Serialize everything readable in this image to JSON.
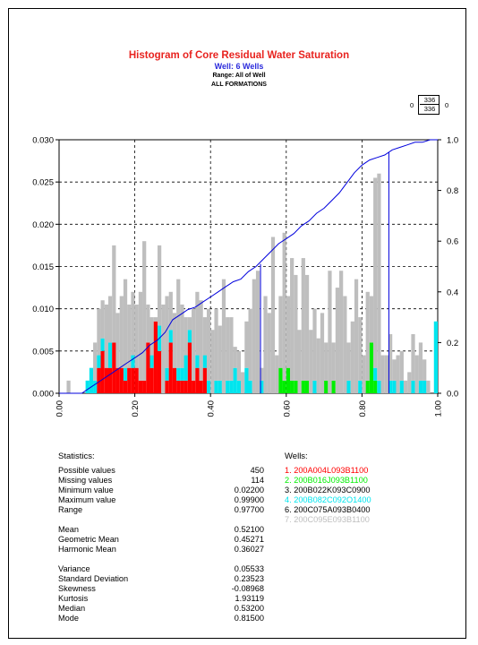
{
  "header": {
    "title": "Histogram of Core Residual Water Saturation",
    "subtitle": "Well: 6 Wells",
    "range": "Range: All of Well",
    "formations": "ALL FORMATIONS",
    "count_numerator": "336",
    "count_denominator": "336",
    "left_zero": "0",
    "right_zero": "0"
  },
  "colors": {
    "red": "#ff0000",
    "green": "#00ee00",
    "black": "#000000",
    "cyan": "#00e5ee",
    "gray": "#bebebe",
    "cumulative_line": "#0000dd",
    "title_red": "#e8231f",
    "subtitle_blue": "#2b2bdc"
  },
  "chart_data": {
    "type": "bar",
    "subtype": "stacked histogram with cumulative frequency curve",
    "xlim": [
      0.0,
      1.0
    ],
    "ylim": [
      0.0,
      0.03
    ],
    "y2lim": [
      0.0,
      1.0
    ],
    "x_ticks": [
      "0.00",
      "0.20",
      "0.40",
      "0.60",
      "0.80",
      "1.00"
    ],
    "y_ticks": [
      "0.000",
      "0.005",
      "0.010",
      "0.015",
      "0.020",
      "0.025",
      "0.030"
    ],
    "y2_ticks": [
      "0.0",
      "0.2",
      "0.4",
      "0.6",
      "0.8",
      "1.0"
    ],
    "grid": "dashed at major ticks",
    "bin_width": 0.01,
    "bin_starts": [
      0.02,
      0.03,
      0.04,
      0.05,
      0.06,
      0.07,
      0.08,
      0.09,
      0.1,
      0.11,
      0.12,
      0.13,
      0.14,
      0.15,
      0.16,
      0.17,
      0.18,
      0.19,
      0.2,
      0.21,
      0.22,
      0.23,
      0.24,
      0.25,
      0.26,
      0.27,
      0.28,
      0.29,
      0.3,
      0.31,
      0.32,
      0.33,
      0.34,
      0.35,
      0.36,
      0.37,
      0.38,
      0.39,
      0.4,
      0.41,
      0.42,
      0.43,
      0.44,
      0.45,
      0.46,
      0.47,
      0.48,
      0.49,
      0.5,
      0.51,
      0.52,
      0.53,
      0.54,
      0.55,
      0.56,
      0.57,
      0.58,
      0.59,
      0.6,
      0.61,
      0.62,
      0.63,
      0.64,
      0.65,
      0.66,
      0.67,
      0.68,
      0.69,
      0.7,
      0.71,
      0.72,
      0.73,
      0.74,
      0.75,
      0.76,
      0.77,
      0.78,
      0.79,
      0.8,
      0.81,
      0.82,
      0.83,
      0.84,
      0.85,
      0.86,
      0.87,
      0.88,
      0.89,
      0.9,
      0.91,
      0.92,
      0.93,
      0.94,
      0.95,
      0.96,
      0.97,
      0.98,
      0.99
    ],
    "series": [
      {
        "name": "1. 200A004L093B1100",
        "color": "#ff0000",
        "values": [
          0,
          0,
          0,
          0,
          0,
          0,
          0,
          0,
          0.003,
          0.005,
          0.003,
          0.003,
          0.006,
          0.003,
          0.003,
          0.0015,
          0.003,
          0.003,
          0.003,
          0.0015,
          0.0015,
          0.006,
          0.003,
          0.0085,
          0.005,
          0,
          0.0015,
          0.006,
          0.003,
          0.0015,
          0.0015,
          0.0015,
          0.006,
          0.0015,
          0.003,
          0.0015,
          0.003,
          0,
          0,
          0,
          0,
          0,
          0,
          0,
          0,
          0,
          0,
          0,
          0,
          0,
          0,
          0,
          0,
          0,
          0,
          0,
          0,
          0,
          0,
          0,
          0,
          0,
          0,
          0,
          0,
          0,
          0,
          0,
          0,
          0,
          0,
          0,
          0,
          0,
          0,
          0,
          0,
          0,
          0,
          0,
          0,
          0,
          0,
          0,
          0,
          0,
          0,
          0,
          0,
          0,
          0,
          0,
          0,
          0,
          0,
          0,
          0,
          0
        ]
      },
      {
        "name": "2. 200B016J093B1100",
        "color": "#00ee00",
        "values": [
          0,
          0,
          0,
          0,
          0,
          0,
          0,
          0,
          0,
          0,
          0,
          0,
          0,
          0,
          0,
          0,
          0,
          0,
          0,
          0,
          0,
          0,
          0,
          0,
          0,
          0,
          0,
          0,
          0,
          0,
          0,
          0,
          0,
          0,
          0,
          0,
          0,
          0,
          0,
          0,
          0,
          0,
          0,
          0,
          0,
          0,
          0,
          0,
          0,
          0,
          0,
          0,
          0,
          0,
          0,
          0,
          0.003,
          0.0015,
          0.003,
          0.0015,
          0.0015,
          0,
          0.0015,
          0.0015,
          0,
          0,
          0,
          0,
          0.0015,
          0,
          0.0015,
          0,
          0,
          0,
          0,
          0,
          0,
          0,
          0,
          0.0015,
          0.006,
          0.0015,
          0,
          0,
          0,
          0,
          0,
          0,
          0,
          0,
          0,
          0,
          0,
          0,
          0,
          0,
          0,
          0
        ]
      },
      {
        "name": "3. 200B022K093C0900",
        "color": "#000000",
        "values": [
          0,
          0,
          0,
          0,
          0,
          0,
          0,
          0,
          0,
          0,
          0,
          0,
          0,
          0,
          0,
          0,
          0,
          0,
          0,
          0,
          0,
          0,
          0,
          0,
          0,
          0,
          0,
          0,
          0,
          0,
          0,
          0,
          0,
          0,
          0,
          0,
          0,
          0,
          0,
          0,
          0,
          0,
          0,
          0,
          0,
          0,
          0,
          0,
          0,
          0,
          0,
          0,
          0,
          0,
          0,
          0,
          0,
          0,
          0,
          0,
          0,
          0,
          0,
          0,
          0,
          0,
          0,
          0,
          0,
          0,
          0,
          0,
          0,
          0,
          0,
          0,
          0,
          0,
          0,
          0,
          0,
          0,
          0,
          0,
          0,
          0,
          0,
          0,
          0,
          0,
          0,
          0,
          0,
          0,
          0,
          0,
          0,
          0
        ]
      },
      {
        "name": "4. 200B082C092O1400",
        "color": "#00e5ee",
        "values": [
          0,
          0,
          0,
          0,
          0,
          0.0015,
          0.003,
          0.0015,
          0.0015,
          0.0015,
          0,
          0.003,
          0,
          0,
          0,
          0.0015,
          0,
          0.0015,
          0,
          0,
          0,
          0,
          0.0015,
          0,
          0.003,
          0,
          0.0015,
          0.0015,
          0,
          0.0015,
          0.0015,
          0.003,
          0.0015,
          0,
          0.0015,
          0,
          0.0015,
          0.0015,
          0,
          0.0015,
          0.0015,
          0,
          0.0015,
          0.0015,
          0.003,
          0.0015,
          0,
          0.003,
          0.0015,
          0,
          0,
          0.0015,
          0,
          0,
          0,
          0,
          0,
          0,
          0,
          0,
          0,
          0,
          0,
          0,
          0,
          0.0015,
          0,
          0,
          0,
          0,
          0,
          0,
          0,
          0,
          0.0015,
          0,
          0,
          0.0015,
          0,
          0,
          0,
          0.0015,
          0.0015,
          0,
          0,
          0.0015,
          0.0015,
          0,
          0.0015,
          0,
          0,
          0.0015,
          0,
          0.0015,
          0.0015,
          0,
          0,
          0.0085
        ]
      },
      {
        "name": "6. 200C075A093B0400",
        "color": "#000000",
        "values": [
          0,
          0,
          0,
          0,
          0,
          0,
          0,
          0,
          0,
          0,
          0,
          0,
          0,
          0,
          0,
          0,
          0,
          0,
          0,
          0,
          0,
          0,
          0,
          0,
          0,
          0,
          0,
          0,
          0,
          0,
          0,
          0,
          0,
          0,
          0,
          0,
          0,
          0,
          0,
          0,
          0,
          0,
          0,
          0,
          0,
          0,
          0,
          0,
          0,
          0,
          0,
          0,
          0,
          0,
          0,
          0,
          0,
          0,
          0,
          0,
          0,
          0,
          0,
          0,
          0,
          0,
          0,
          0,
          0,
          0,
          0,
          0,
          0,
          0,
          0,
          0,
          0,
          0,
          0,
          0,
          0,
          0,
          0,
          0,
          0,
          0,
          0,
          0,
          0,
          0,
          0,
          0,
          0,
          0,
          0,
          0,
          0,
          0
        ]
      },
      {
        "name": "7. 200C095E093B1100",
        "color": "#bebebe",
        "values": [
          0.0015,
          0,
          0,
          0,
          0,
          0,
          0,
          0.0045,
          0.0055,
          0.0045,
          0.0075,
          0.0055,
          0.0115,
          0.0065,
          0.0085,
          0.0105,
          0.0075,
          0.0075,
          0.0075,
          0.0105,
          0.0165,
          0.0045,
          0.0045,
          0.0005,
          0.0095,
          0.0105,
          0.0085,
          0.0045,
          0.0065,
          0.0105,
          0.0075,
          0.0045,
          0.0015,
          0.0085,
          0.0075,
          0.0095,
          0.0045,
          0.0085,
          0.0075,
          0.0085,
          0.0065,
          0.0135,
          0.0075,
          0.0075,
          0.0025,
          0.0035,
          0.0025,
          0.0055,
          0.0085,
          0.0135,
          0.0145,
          0.0015,
          0.0115,
          0.0095,
          0.0185,
          0.0045,
          0.0085,
          0.0175,
          0.0085,
          0.0145,
          0.0125,
          0.0075,
          0.0145,
          0.0125,
          0.0075,
          0.0085,
          0.0065,
          0.0095,
          0.0045,
          0.0145,
          0.0045,
          0.0125,
          0.0145,
          0.0115,
          0.0045,
          0.0085,
          0.0135,
          0.0075,
          0.0045,
          0.0105,
          0.0055,
          0.0225,
          0.0245,
          0.0045,
          0.0045,
          0.0055,
          0.0025,
          0.0045,
          0.0035,
          0.0015,
          0.0025,
          0.0055,
          0.0045,
          0.0045,
          0.0025,
          0.0015,
          0.0,
          0.0
        ]
      }
    ],
    "cumulative": {
      "color": "#0000dd",
      "x": [
        0.0,
        0.06,
        0.08,
        0.1,
        0.12,
        0.14,
        0.16,
        0.18,
        0.2,
        0.22,
        0.24,
        0.26,
        0.28,
        0.3,
        0.32,
        0.34,
        0.36,
        0.38,
        0.4,
        0.42,
        0.44,
        0.46,
        0.48,
        0.5,
        0.52,
        0.54,
        0.56,
        0.58,
        0.6,
        0.62,
        0.64,
        0.66,
        0.68,
        0.7,
        0.72,
        0.74,
        0.76,
        0.78,
        0.8,
        0.82,
        0.84,
        0.86,
        0.88,
        0.9,
        0.92,
        0.94,
        0.96,
        0.98,
        1.0
      ],
      "y": [
        0.0,
        0.0,
        0.02,
        0.04,
        0.06,
        0.08,
        0.1,
        0.12,
        0.14,
        0.16,
        0.19,
        0.21,
        0.24,
        0.29,
        0.31,
        0.33,
        0.34,
        0.36,
        0.38,
        0.4,
        0.42,
        0.44,
        0.45,
        0.48,
        0.5,
        0.53,
        0.56,
        0.59,
        0.61,
        0.63,
        0.66,
        0.68,
        0.71,
        0.73,
        0.76,
        0.79,
        0.83,
        0.87,
        0.9,
        0.92,
        0.93,
        0.94,
        0.96,
        0.97,
        0.98,
        0.99,
        0.99,
        1.0,
        1.0
      ]
    },
    "reference_lines": [
      {
        "x": 0.532,
        "y_top": 0.51
      },
      {
        "x": 0.871,
        "y_top": 0.95
      }
    ]
  },
  "statistics": {
    "heading": "Statistics:",
    "rows": [
      {
        "label": "Possible values",
        "value": "450"
      },
      {
        "label": "Missing values",
        "value": "114"
      },
      {
        "label": "Minimum value",
        "value": "0.02200"
      },
      {
        "label": "Maximum value",
        "value": "0.99900"
      },
      {
        "label": "Range",
        "value": "0.97700"
      },
      {
        "label": "Mean",
        "value": "0.52100"
      },
      {
        "label": "Geometric Mean",
        "value": "0.45271"
      },
      {
        "label": "Harmonic Mean",
        "value": "0.36027"
      },
      {
        "label": "Variance",
        "value": "0.05533"
      },
      {
        "label": "Standard Deviation",
        "value": "0.23523"
      },
      {
        "label": "Skewness",
        "value": "-0.08968"
      },
      {
        "label": "Kurtosis",
        "value": "1.93119"
      },
      {
        "label": "Median",
        "value": "0.53200"
      },
      {
        "label": "Mode",
        "value": "0.81500"
      }
    ]
  },
  "wells": {
    "heading": "Wells:",
    "items": [
      {
        "label": "1. 200A004L093B1100",
        "color": "#ff0000"
      },
      {
        "label": "2. 200B016J093B1100",
        "color": "#00ee00"
      },
      {
        "label": "3. 200B022K093C0900",
        "color": "#000000"
      },
      {
        "label": "4. 200B082C092O1400",
        "color": "#00e5ee"
      },
      {
        "label": "6. 200C075A093B0400",
        "color": "#000000"
      },
      {
        "label": "7. 200C095E093B1100",
        "color": "#bebebe"
      }
    ]
  }
}
